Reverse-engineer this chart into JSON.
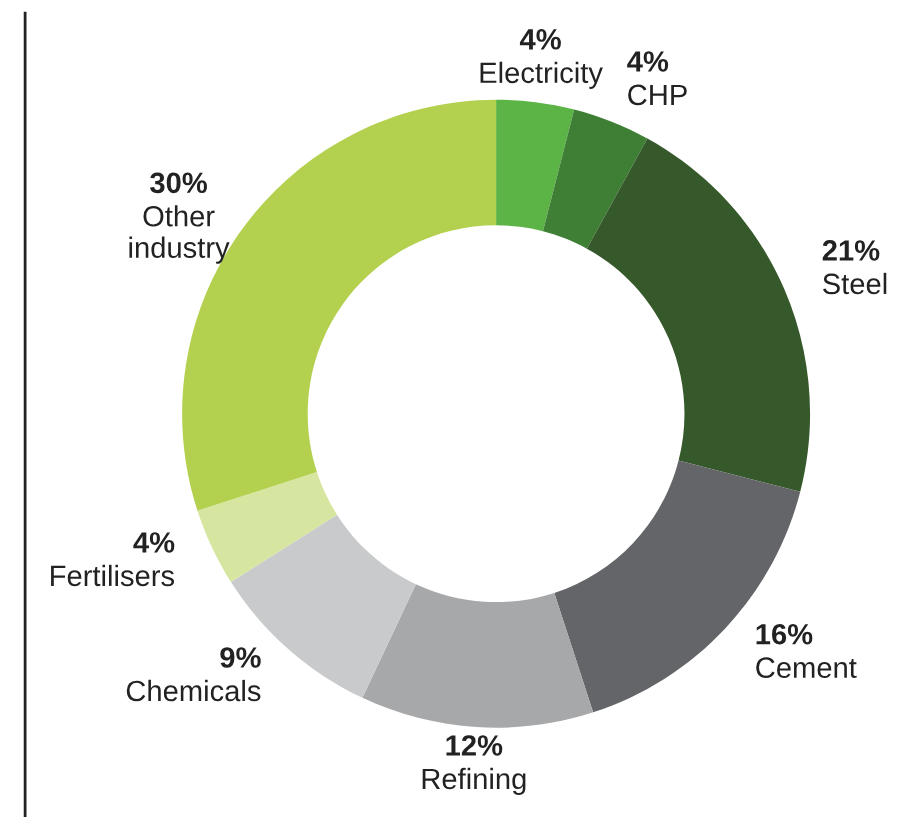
{
  "chart_data": {
    "type": "donut",
    "categories": [
      "Electricity",
      "CHP",
      "Steel",
      "Cement",
      "Refining",
      "Chemicals",
      "Fertilisers",
      "Other industry"
    ],
    "values": [
      4,
      4,
      21,
      16,
      12,
      9,
      4,
      30
    ],
    "value_labels": [
      "4%",
      "4%",
      "21%",
      "16%",
      "12%",
      "9%",
      "4%",
      "30%"
    ],
    "colors": [
      "#5cb346",
      "#3f7f35",
      "#36592b",
      "#646568",
      "#a7a8aa",
      "#c9cacb",
      "#d6e6a0",
      "#b3d14f"
    ]
  }
}
